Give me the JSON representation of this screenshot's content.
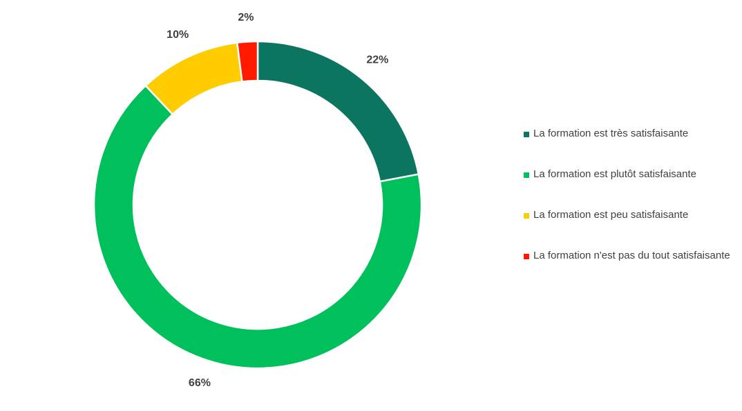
{
  "chart_data": {
    "type": "donut",
    "categories": [
      "La formation est très satisfaisante",
      "La formation est plutôt satisfaisante",
      "La formation est peu satisfaisante",
      "La formation n'est pas du tout satisfaisante"
    ],
    "values": [
      22,
      66,
      10,
      2
    ],
    "value_labels": [
      "22%",
      "66%",
      "10%",
      "2%"
    ],
    "colors": [
      "#0b7560",
      "#00c05c",
      "#ffcc00",
      "#ff1a00"
    ],
    "legend": "right"
  }
}
